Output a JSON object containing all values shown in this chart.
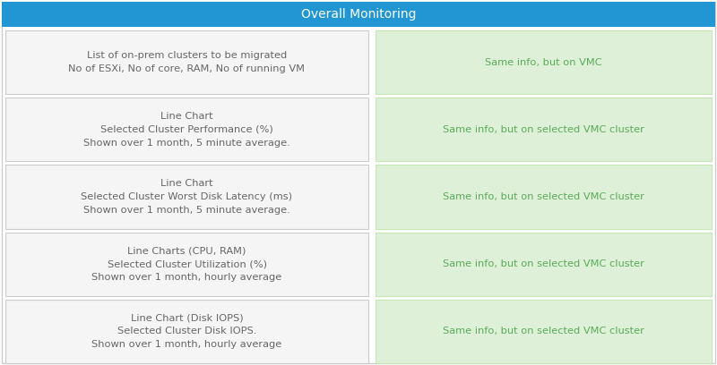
{
  "title": "Overall Monitoring",
  "title_bg": "#2196d3",
  "title_color": "#ffffff",
  "title_fontsize": 10,
  "left_cells": [
    "List of on-prem clusters to be migrated\nNo of ESXi, No of core, RAM, No of running VM",
    "Line Chart\nSelected Cluster Performance (%)\nShown over 1 month, 5 minute average.",
    "Line Chart\nSelected Cluster Worst Disk Latency (ms)\nShown over 1 month, 5 minute average.",
    "Line Charts (CPU, RAM)\nSelected Cluster Utilization (%)\nShown over 1 month, hourly average",
    "Line Chart (Disk IOPS)\nSelected Cluster Disk IOPS.\nShown over 1 month, hourly average"
  ],
  "right_cells": [
    "Same info, but on VMC",
    "Same info, but on selected VMC cluster",
    "Same info, but on selected VMC cluster",
    "Same info, but on selected VMC cluster",
    "Same info, but on selected VMC cluster"
  ],
  "left_bg": "#f5f5f5",
  "left_border": "#cccccc",
  "left_text_color": "#666666",
  "right_bg": "#dff0d8",
  "right_border": "#c3e6b3",
  "right_text_color": "#5aab5a",
  "outer_bg": "#ffffff",
  "cell_fontsize": 8.2,
  "fig_bg": "#ffffff",
  "outer_border": "#cccccc"
}
